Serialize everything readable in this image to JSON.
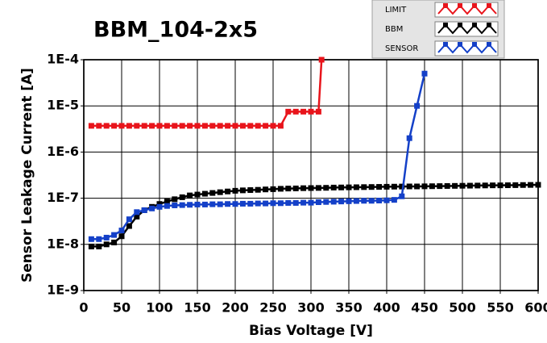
{
  "chart_data": {
    "type": "line",
    "title": "BBM_104-2x5",
    "x_label": "Bias Voltage [V]",
    "y_label": "Sensor Leakage Current [A]",
    "xlim": [
      0,
      600
    ],
    "xticks": [
      0,
      50,
      100,
      150,
      200,
      250,
      300,
      350,
      400,
      450,
      500,
      550,
      600
    ],
    "ylim": [
      1e-09,
      0.0001
    ],
    "yticks": [
      {
        "value": 1e-09,
        "label": "1E-9"
      },
      {
        "value": 1e-08,
        "label": "1E-8"
      },
      {
        "value": 1e-07,
        "label": "1E-7"
      },
      {
        "value": 1e-06,
        "label": "1E-6"
      },
      {
        "value": 1e-05,
        "label": "1E-5"
      },
      {
        "value": 0.0001,
        "label": "1E-4"
      }
    ],
    "y_scale": "log",
    "grid": true,
    "legend_position": "top-right",
    "series": [
      {
        "name": "LIMIT",
        "color": "#e8141b",
        "x": [
          10,
          20,
          30,
          40,
          50,
          60,
          70,
          80,
          90,
          100,
          110,
          120,
          130,
          140,
          150,
          160,
          170,
          180,
          190,
          200,
          210,
          220,
          230,
          240,
          250,
          260,
          270,
          280,
          290,
          300,
          310,
          314
        ],
        "values": [
          3.7e-06,
          3.7e-06,
          3.7e-06,
          3.7e-06,
          3.7e-06,
          3.7e-06,
          3.7e-06,
          3.7e-06,
          3.7e-06,
          3.7e-06,
          3.7e-06,
          3.7e-06,
          3.7e-06,
          3.7e-06,
          3.7e-06,
          3.7e-06,
          3.7e-06,
          3.7e-06,
          3.7e-06,
          3.7e-06,
          3.7e-06,
          3.7e-06,
          3.7e-06,
          3.7e-06,
          3.7e-06,
          3.7e-06,
          7.5e-06,
          7.5e-06,
          7.5e-06,
          7.5e-06,
          7.5e-06,
          0.0001
        ]
      },
      {
        "name": "BBM",
        "color": "#000000",
        "x": [
          10,
          20,
          30,
          40,
          50,
          60,
          70,
          80,
          90,
          100,
          110,
          120,
          130,
          140,
          150,
          160,
          170,
          180,
          190,
          200,
          210,
          220,
          230,
          240,
          250,
          260,
          270,
          280,
          290,
          300,
          310,
          320,
          330,
          340,
          350,
          360,
          370,
          380,
          390,
          400,
          410,
          420,
          430,
          440,
          450,
          460,
          470,
          480,
          490,
          500,
          510,
          520,
          530,
          540,
          550,
          560,
          570,
          580,
          590,
          600
        ],
        "values": [
          9e-09,
          9e-09,
          1e-08,
          1.1e-08,
          1.5e-08,
          2.5e-08,
          4e-08,
          5.5e-08,
          6.5e-08,
          7.5e-08,
          8.5e-08,
          9.5e-08,
          1.05e-07,
          1.15e-07,
          1.2e-07,
          1.25e-07,
          1.3e-07,
          1.35e-07,
          1.4e-07,
          1.45e-07,
          1.48e-07,
          1.5e-07,
          1.52e-07,
          1.55e-07,
          1.57e-07,
          1.6e-07,
          1.62e-07,
          1.63e-07,
          1.65e-07,
          1.66e-07,
          1.67e-07,
          1.68e-07,
          1.7e-07,
          1.71e-07,
          1.72e-07,
          1.73e-07,
          1.74e-07,
          1.75e-07,
          1.76e-07,
          1.77e-07,
          1.78e-07,
          1.79e-07,
          1.8e-07,
          1.8e-07,
          1.81e-07,
          1.82e-07,
          1.83e-07,
          1.84e-07,
          1.85e-07,
          1.86e-07,
          1.87e-07,
          1.88e-07,
          1.89e-07,
          1.9e-07,
          1.9e-07,
          1.91e-07,
          1.92e-07,
          1.93e-07,
          1.94e-07,
          1.95e-07
        ]
      },
      {
        "name": "SENSOR",
        "color": "#1440c8",
        "x": [
          10,
          20,
          30,
          40,
          50,
          60,
          70,
          80,
          90,
          100,
          110,
          120,
          130,
          140,
          150,
          160,
          170,
          180,
          190,
          200,
          210,
          220,
          230,
          240,
          250,
          260,
          270,
          280,
          290,
          300,
          310,
          320,
          330,
          340,
          350,
          360,
          370,
          380,
          390,
          400,
          410,
          420,
          430,
          440,
          450
        ],
        "values": [
          1.3e-08,
          1.3e-08,
          1.4e-08,
          1.6e-08,
          2e-08,
          3.5e-08,
          5e-08,
          5.5e-08,
          6e-08,
          6.5e-08,
          6.8e-08,
          7e-08,
          7.1e-08,
          7.2e-08,
          7.3e-08,
          7.3e-08,
          7.4e-08,
          7.4e-08,
          7.5e-08,
          7.5e-08,
          7.6e-08,
          7.6e-08,
          7.7e-08,
          7.7e-08,
          7.8e-08,
          7.8e-08,
          7.9e-08,
          7.9e-08,
          8e-08,
          8e-08,
          8.2e-08,
          8.3e-08,
          8.4e-08,
          8.5e-08,
          8.6e-08,
          8.7e-08,
          8.8e-08,
          8.8e-08,
          8.9e-08,
          9e-08,
          9.2e-08,
          1.1e-07,
          2e-06,
          1e-05,
          5e-05
        ]
      }
    ]
  }
}
